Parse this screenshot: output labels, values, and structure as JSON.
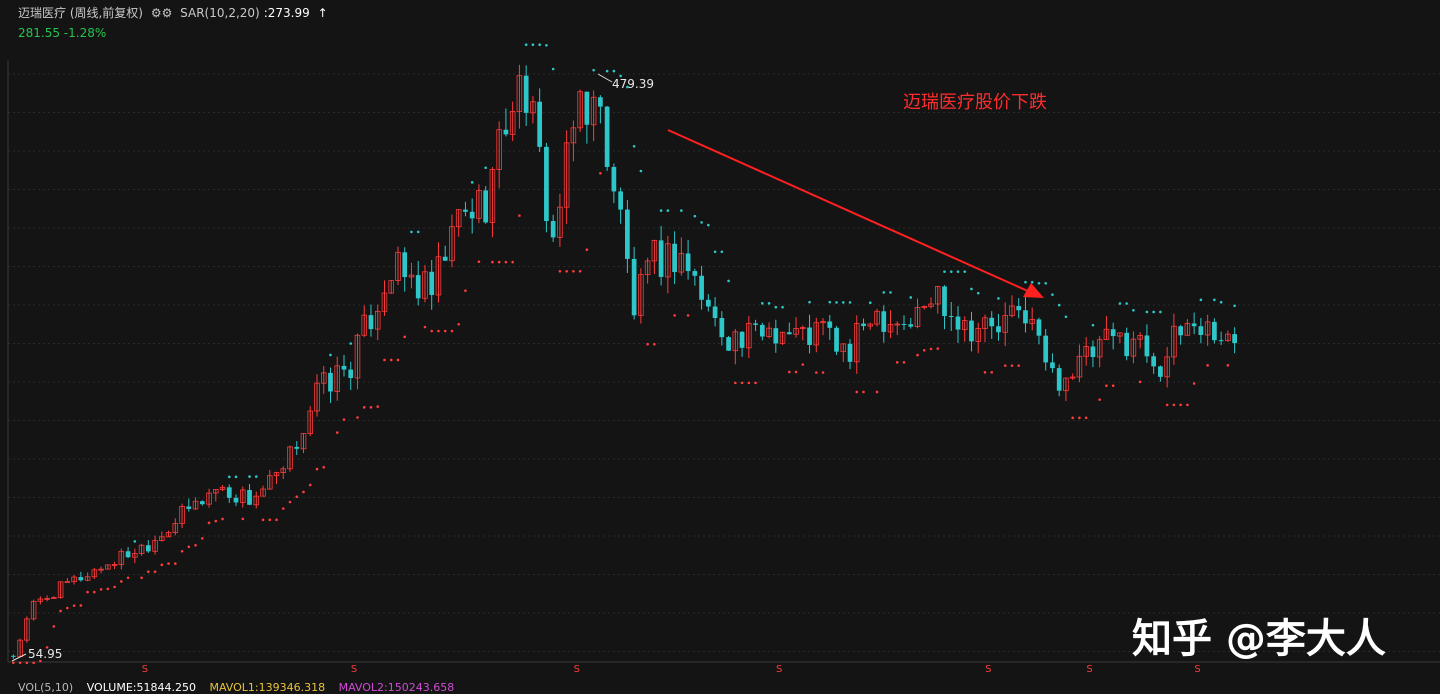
{
  "header": {
    "stock_name": "迈瑞医疗 (周线,前复权)",
    "gear_icon": "gear-icon",
    "indicator": "SAR(10,2,20)",
    "indicator_value": ":273.99",
    "trend_arrow": "↑",
    "price_change": "281.55 -1.28%"
  },
  "annotation": {
    "text": "迈瑞医疗股价下跌",
    "arrow_color": "#ff2020"
  },
  "watermark": "知乎 @李大人",
  "footer": {
    "vol_label": "VOL(5,10)",
    "volume": "VOLUME:51844.250",
    "mavol1": "MAVOL1:139346.318",
    "mavol2": "MAVOL2:150243.658"
  },
  "colors": {
    "up": "#ff3b3b",
    "down": "#2ec7c9",
    "sar_up": "#ff3b3b",
    "sar_down": "#2ec7c9",
    "background": "#141414",
    "grid": "#2a2a2a"
  },
  "chart_data": {
    "type": "candlestick",
    "ylim": [
      54.95,
      479.39
    ],
    "high_label": "479.39",
    "low_label": "54.95",
    "dividend_marker": "S",
    "dividend_markers_x_index": [
      20,
      51,
      84,
      114,
      145,
      160,
      176
    ],
    "anchors": [
      {
        "i": 0,
        "v": 58
      },
      {
        "i": 3,
        "v": 95
      },
      {
        "i": 8,
        "v": 110
      },
      {
        "i": 14,
        "v": 125
      },
      {
        "i": 20,
        "v": 140
      },
      {
        "i": 25,
        "v": 160
      },
      {
        "i": 30,
        "v": 180
      },
      {
        "i": 35,
        "v": 172
      },
      {
        "i": 40,
        "v": 190
      },
      {
        "i": 45,
        "v": 250
      },
      {
        "i": 50,
        "v": 270
      },
      {
        "i": 56,
        "v": 340
      },
      {
        "i": 62,
        "v": 320
      },
      {
        "i": 66,
        "v": 375
      },
      {
        "i": 70,
        "v": 390
      },
      {
        "i": 74,
        "v": 465
      },
      {
        "i": 76,
        "v": 470
      },
      {
        "i": 80,
        "v": 360
      },
      {
        "i": 84,
        "v": 465
      },
      {
        "i": 87,
        "v": 450
      },
      {
        "i": 90,
        "v": 375
      },
      {
        "i": 92,
        "v": 310
      },
      {
        "i": 95,
        "v": 345
      },
      {
        "i": 99,
        "v": 350
      },
      {
        "i": 104,
        "v": 300
      },
      {
        "i": 108,
        "v": 285
      },
      {
        "i": 112,
        "v": 298
      },
      {
        "i": 117,
        "v": 290
      },
      {
        "i": 120,
        "v": 295
      },
      {
        "i": 124,
        "v": 275
      },
      {
        "i": 127,
        "v": 310
      },
      {
        "i": 133,
        "v": 300
      },
      {
        "i": 137,
        "v": 322
      },
      {
        "i": 141,
        "v": 300
      },
      {
        "i": 146,
        "v": 295
      },
      {
        "i": 150,
        "v": 310
      },
      {
        "i": 154,
        "v": 260
      },
      {
        "i": 157,
        "v": 265
      },
      {
        "i": 162,
        "v": 285
      },
      {
        "i": 166,
        "v": 290
      },
      {
        "i": 170,
        "v": 270
      },
      {
        "i": 174,
        "v": 300
      },
      {
        "i": 178,
        "v": 295
      },
      {
        "i": 181,
        "v": 282
      }
    ]
  }
}
